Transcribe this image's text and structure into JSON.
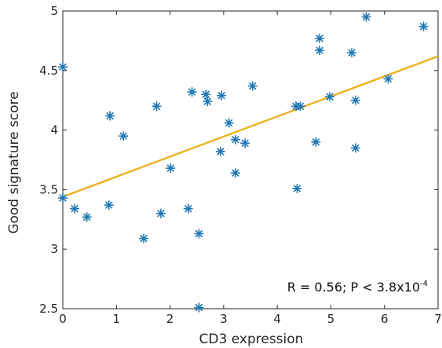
{
  "chart_data": {
    "type": "scatter",
    "title": "",
    "xlabel": "CD3 expression",
    "ylabel": "Good signature score",
    "xlim": [
      0,
      7
    ],
    "ylim": [
      2.5,
      5
    ],
    "xticks": [
      "0",
      "1",
      "2",
      "3",
      "4",
      "5",
      "6",
      "7"
    ],
    "yticks": [
      "2.5",
      "3",
      "3.5",
      "4",
      "4.5",
      "5"
    ],
    "grid": false,
    "legend": "none",
    "marker": "asterisk",
    "series": [
      {
        "color": "#1f77b4",
        "points": [
          {
            "x": 0.0,
            "y": 4.53
          },
          {
            "x": 0.0,
            "y": 3.43
          },
          {
            "x": 0.22,
            "y": 3.34
          },
          {
            "x": 0.45,
            "y": 3.27
          },
          {
            "x": 0.86,
            "y": 3.37
          },
          {
            "x": 0.88,
            "y": 4.12
          },
          {
            "x": 1.13,
            "y": 3.95
          },
          {
            "x": 1.51,
            "y": 3.09
          },
          {
            "x": 1.75,
            "y": 4.2
          },
          {
            "x": 1.83,
            "y": 3.3
          },
          {
            "x": 2.01,
            "y": 3.68
          },
          {
            "x": 2.34,
            "y": 3.34
          },
          {
            "x": 2.41,
            "y": 4.32
          },
          {
            "x": 2.54,
            "y": 3.13
          },
          {
            "x": 2.54,
            "y": 2.51
          },
          {
            "x": 2.67,
            "y": 4.3
          },
          {
            "x": 2.7,
            "y": 4.24
          },
          {
            "x": 2.94,
            "y": 3.82
          },
          {
            "x": 2.96,
            "y": 4.29
          },
          {
            "x": 3.1,
            "y": 4.06
          },
          {
            "x": 3.22,
            "y": 3.92
          },
          {
            "x": 3.22,
            "y": 3.64
          },
          {
            "x": 3.4,
            "y": 3.89
          },
          {
            "x": 3.54,
            "y": 4.37
          },
          {
            "x": 4.35,
            "y": 4.2
          },
          {
            "x": 4.37,
            "y": 3.51
          },
          {
            "x": 4.43,
            "y": 4.2
          },
          {
            "x": 4.72,
            "y": 3.9
          },
          {
            "x": 4.79,
            "y": 4.77
          },
          {
            "x": 4.79,
            "y": 4.67
          },
          {
            "x": 4.98,
            "y": 4.28
          },
          {
            "x": 5.39,
            "y": 4.65
          },
          {
            "x": 5.46,
            "y": 4.25
          },
          {
            "x": 5.46,
            "y": 3.85
          },
          {
            "x": 5.66,
            "y": 4.95
          },
          {
            "x": 6.07,
            "y": 4.43
          },
          {
            "x": 6.73,
            "y": 4.87
          }
        ]
      }
    ],
    "fit_line": {
      "color": "#edb120",
      "x": [
        0,
        7
      ],
      "y": [
        3.44,
        4.62
      ]
    },
    "annotation": {
      "text": "R = 0.56; P < 3.8x10",
      "superscript": "-4"
    },
    "axis_color": "#262626"
  }
}
